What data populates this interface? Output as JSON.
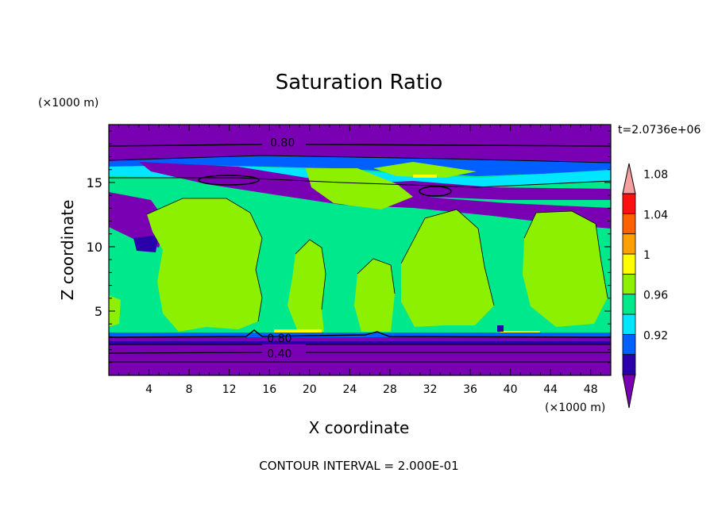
{
  "chart_data": {
    "type": "heatmap",
    "title": "Saturation Ratio",
    "xlabel": "X coordinate",
    "ylabel": "Z coordinate",
    "x_unit": "(×1000 m)",
    "y_unit": "(×1000 m)",
    "time_label": "t=2.0736e+06",
    "contour_interval_label": "CONTOUR INTERVAL = 2.000E-01",
    "xlim": [
      0,
      50
    ],
    "ylim": [
      0,
      19.5
    ],
    "x_ticks": [
      4,
      8,
      12,
      16,
      20,
      24,
      28,
      32,
      36,
      40,
      44,
      48
    ],
    "y_ticks": [
      5,
      10,
      15
    ],
    "contour_labels": [
      {
        "text": "0.80",
        "x": 17.3,
        "y": 18.1
      },
      {
        "text": "0.80",
        "x": 17.0,
        "y": 2.9
      },
      {
        "text": "0.40",
        "x": 17.0,
        "y": 1.7
      }
    ],
    "colorbar": {
      "levels": [
        "0.92",
        "0.96",
        "1",
        "1.04",
        "1.08"
      ],
      "colors": [
        "#7a00b4",
        "#2a00aa",
        "#0060ff",
        "#00e6ff",
        "#00e88c",
        "#8cf000",
        "#ffff00",
        "#ffa000",
        "#ff6000",
        "#ff1010",
        "#f4a0a0"
      ]
    }
  }
}
